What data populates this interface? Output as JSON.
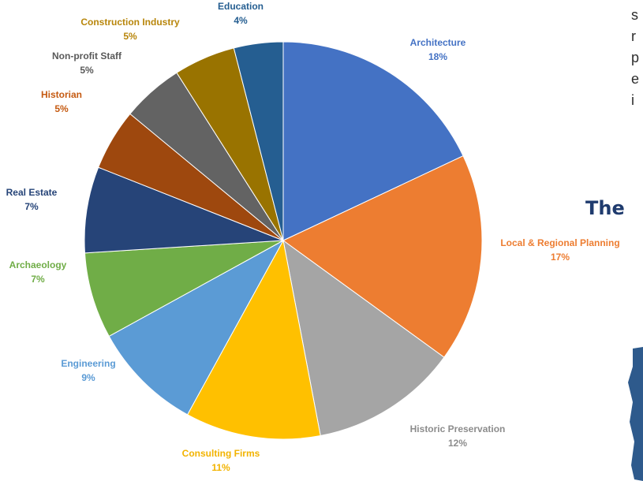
{
  "chart_data": {
    "type": "pie",
    "title": "",
    "slices": [
      {
        "label": "Architecture",
        "value": 18,
        "percent_label": "18%",
        "color": "#4472C4",
        "label_color": "#4472C4"
      },
      {
        "label": "Local & Regional Planning",
        "value": 17,
        "percent_label": "17%",
        "color": "#ED7D31",
        "label_color": "#ED7D31"
      },
      {
        "label": "Historic Preservation",
        "value": 12,
        "percent_label": "12%",
        "color": "#A5A5A5",
        "label_color": "#8C8C8C"
      },
      {
        "label": "Consulting Firms",
        "value": 11,
        "percent_label": "11%",
        "color": "#FFC000",
        "label_color": "#F2B300"
      },
      {
        "label": "Engineering",
        "value": 9,
        "percent_label": "9%",
        "color": "#5B9BD5",
        "label_color": "#5B9BD5"
      },
      {
        "label": "Archaeology",
        "value": 7,
        "percent_label": "7%",
        "color": "#70AD47",
        "label_color": "#70AD47"
      },
      {
        "label": "Real Estate",
        "value": 7,
        "percent_label": "7%",
        "color": "#264478",
        "label_color": "#264478"
      },
      {
        "label": "Historian",
        "value": 5,
        "percent_label": "5%",
        "color": "#9E480E",
        "label_color": "#C55A11"
      },
      {
        "label": "Non-profit Staff",
        "value": 5,
        "percent_label": "5%",
        "color": "#636363",
        "label_color": "#595959"
      },
      {
        "label": "Construction Industry",
        "value": 5,
        "percent_label": "5%",
        "color": "#997300",
        "label_color": "#B8860B"
      },
      {
        "label": "Education",
        "value": 4,
        "percent_label": "4%",
        "color": "#255E91",
        "label_color": "#255E91"
      }
    ]
  },
  "side_text": {
    "letters": [
      "s",
      "r",
      "p",
      "e",
      "i"
    ],
    "heading": "The",
    "heading_color": "#1f3b6e",
    "map_color": "#2E5A8C"
  }
}
